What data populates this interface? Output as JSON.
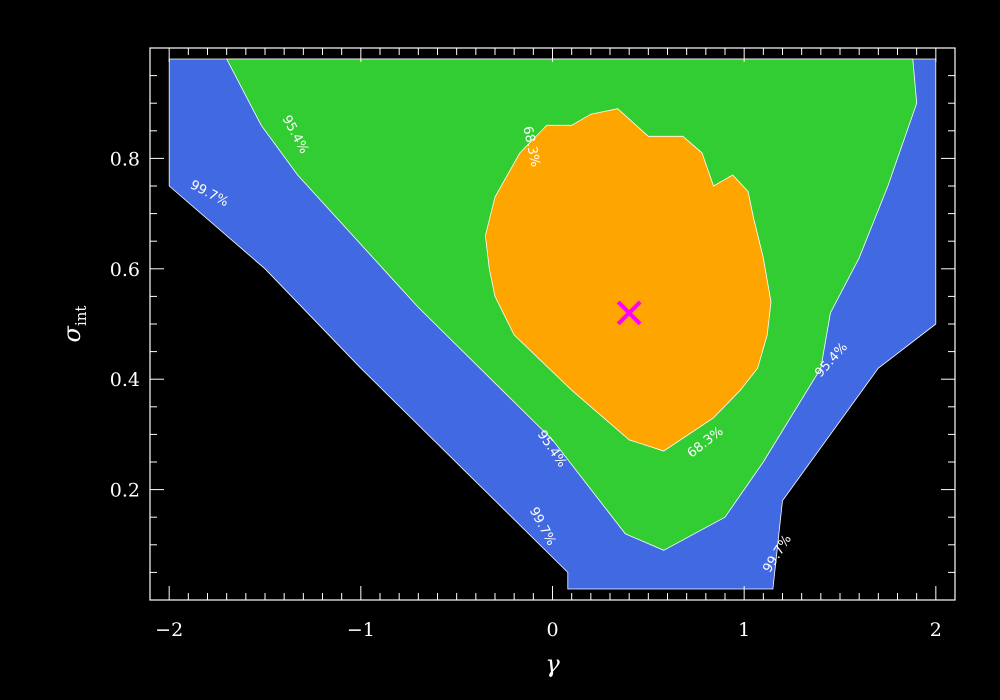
{
  "chart_data": {
    "type": "contour",
    "xlabel": "γ",
    "ylabel": {
      "symbol": "σ",
      "subscript": "int"
    },
    "xlim": [
      -2.1,
      2.1
    ],
    "ylim": [
      0,
      1
    ],
    "xticks": [
      {
        "value": -2,
        "label": "−2"
      },
      {
        "value": -1,
        "label": "−1"
      },
      {
        "value": 0,
        "label": "0"
      },
      {
        "value": 1,
        "label": "1"
      },
      {
        "value": 2,
        "label": "2"
      }
    ],
    "yticks": [
      {
        "value": 0.2,
        "label": "0.2"
      },
      {
        "value": 0.4,
        "label": "0.4"
      },
      {
        "value": 0.6,
        "label": "0.6"
      },
      {
        "value": 0.8,
        "label": "0.8"
      }
    ],
    "grid": false,
    "background_color": "#000000",
    "best_fit": {
      "x": 0.4,
      "y": 0.52,
      "marker": "x",
      "color": "#ff00ff"
    },
    "regions": [
      {
        "name": "99.7%",
        "color": "#4169e1",
        "polygon": [
          [
            -2.0,
            0.98
          ],
          [
            -0.87,
            0.98
          ],
          [
            1.88,
            0.98
          ],
          [
            2.0,
            0.98
          ],
          [
            2.0,
            0.5
          ],
          [
            1.7,
            0.42
          ],
          [
            1.2,
            0.18
          ],
          [
            1.15,
            0.02
          ],
          [
            0.08,
            0.02
          ],
          [
            0.08,
            0.05
          ],
          [
            -1.0,
            0.42
          ],
          [
            -1.5,
            0.6
          ],
          [
            -2.0,
            0.75
          ]
        ]
      },
      {
        "name": "95.4%",
        "color": "#32cd32",
        "polygon": [
          [
            -1.7,
            0.98
          ],
          [
            1.88,
            0.98
          ],
          [
            1.9,
            0.9
          ],
          [
            1.75,
            0.75
          ],
          [
            1.6,
            0.62
          ],
          [
            1.45,
            0.52
          ],
          [
            1.4,
            0.42
          ],
          [
            1.1,
            0.25
          ],
          [
            0.9,
            0.15
          ],
          [
            0.58,
            0.09
          ],
          [
            0.38,
            0.12
          ],
          [
            0.0,
            0.29
          ],
          [
            -0.7,
            0.53
          ],
          [
            -1.33,
            0.77
          ],
          [
            -1.52,
            0.86
          ],
          [
            -1.58,
            0.9
          ]
        ]
      },
      {
        "name": "68.3%",
        "color": "#ffa500",
        "polygon": [
          [
            -0.03,
            0.86
          ],
          [
            0.1,
            0.86
          ],
          [
            0.2,
            0.88
          ],
          [
            0.34,
            0.89
          ],
          [
            0.5,
            0.84
          ],
          [
            0.68,
            0.84
          ],
          [
            0.78,
            0.81
          ],
          [
            0.84,
            0.75
          ],
          [
            0.94,
            0.77
          ],
          [
            1.02,
            0.74
          ],
          [
            1.05,
            0.69
          ],
          [
            1.1,
            0.62
          ],
          [
            1.14,
            0.54
          ],
          [
            1.12,
            0.48
          ],
          [
            1.07,
            0.42
          ],
          [
            0.98,
            0.38
          ],
          [
            0.84,
            0.33
          ],
          [
            0.58,
            0.27
          ],
          [
            0.4,
            0.29
          ],
          [
            0.1,
            0.38
          ],
          [
            -0.2,
            0.48
          ],
          [
            -0.3,
            0.55
          ],
          [
            -0.33,
            0.6
          ],
          [
            -0.35,
            0.66
          ],
          [
            -0.3,
            0.73
          ],
          [
            -0.17,
            0.81
          ]
        ]
      }
    ],
    "annotations": [
      {
        "text": "95.4%",
        "x": -1.36,
        "y": 0.84
      },
      {
        "text": "99.7%",
        "x": -1.8,
        "y": 0.73
      },
      {
        "text": "68.3%",
        "x": -0.13,
        "y": 0.82
      },
      {
        "text": "95.4%",
        "x": 1.47,
        "y": 0.43
      },
      {
        "text": "95.4%",
        "x": -0.02,
        "y": 0.27
      },
      {
        "text": "68.3%",
        "x": 0.81,
        "y": 0.28
      },
      {
        "text": "99.7%",
        "x": -0.07,
        "y": 0.13
      },
      {
        "text": "99.7%",
        "x": 1.19,
        "y": 0.08
      }
    ]
  }
}
